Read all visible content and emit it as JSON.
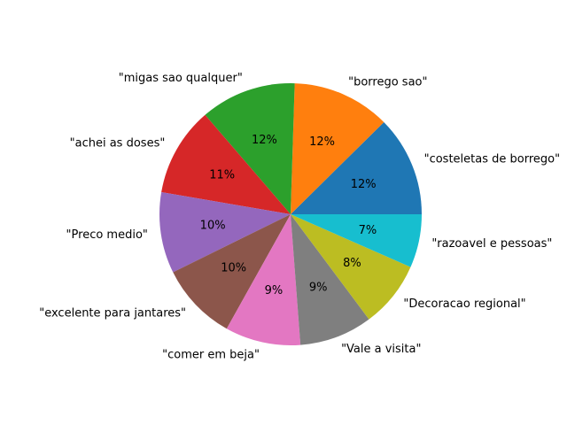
{
  "chart_data": {
    "type": "pie",
    "title": "",
    "start_angle_deg": 0,
    "direction": "counterclockwise",
    "slices": [
      {
        "label": "\"costeletas de borrego\"",
        "pct_label": "12%",
        "value": 12.4,
        "color": "#1f77b4"
      },
      {
        "label": "\"borrego sao\"",
        "pct_label": "12%",
        "value": 12.1,
        "color": "#ff7f0e"
      },
      {
        "label": "\"migas sao qualquer\"",
        "pct_label": "12%",
        "value": 11.8,
        "color": "#2ca02c"
      },
      {
        "label": "\"achei as doses\"",
        "pct_label": "11%",
        "value": 11.0,
        "color": "#d62728"
      },
      {
        "label": "\"Preco medio\"",
        "pct_label": "10%",
        "value": 10.0,
        "color": "#9467bd"
      },
      {
        "label": "\"excelente para jantares\"",
        "pct_label": "10%",
        "value": 9.6,
        "color": "#8c564b"
      },
      {
        "label": "\"comer em beja\"",
        "pct_label": "9%",
        "value": 9.3,
        "color": "#e377c2"
      },
      {
        "label": "\"Vale a visita\"",
        "pct_label": "9%",
        "value": 9.0,
        "color": "#7f7f7f"
      },
      {
        "label": "\"Decoracao regional\"",
        "pct_label": "8%",
        "value": 8.2,
        "color": "#bcbd22"
      },
      {
        "label": "\"razoavel e pessoas\"",
        "pct_label": "7%",
        "value": 6.6,
        "color": "#17becf"
      }
    ]
  }
}
